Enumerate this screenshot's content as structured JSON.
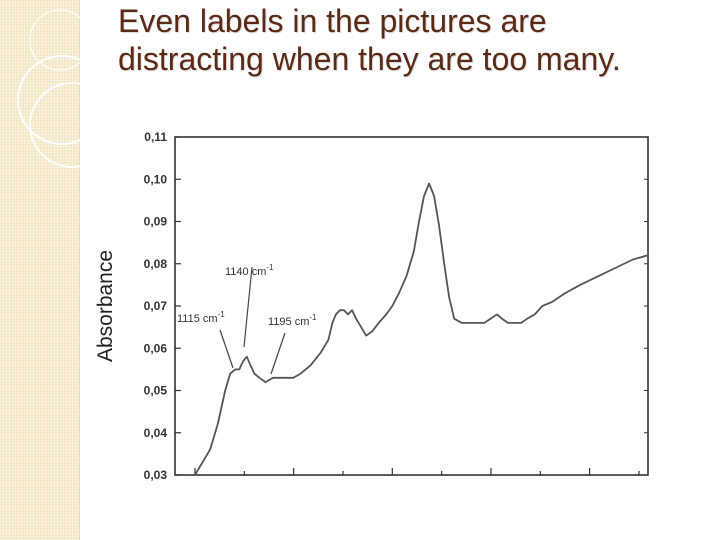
{
  "slide": {
    "title": "Even labels in the pictures are distracting when they are too many."
  },
  "colors": {
    "title": "#5a2a16",
    "side_strip": "#f3e6c4",
    "plot_line": "#555555",
    "axis": "#333333"
  },
  "chart_data": {
    "type": "line",
    "xlabel": "",
    "ylabel": "Absorbance",
    "ylim": [
      0.03,
      0.11
    ],
    "yticks": [
      "0,03",
      "0,04",
      "0,05",
      "0,06",
      "0,07",
      "0,08",
      "0,09",
      "0,10",
      "0,11"
    ],
    "grid": false,
    "series": [
      {
        "points": [
          [
            0.0,
            0.03
          ],
          [
            1.5,
            0.033
          ],
          [
            3.0,
            0.036
          ],
          [
            4.5,
            0.042
          ],
          [
            6.0,
            0.05
          ],
          [
            7.0,
            0.054
          ],
          [
            8.0,
            0.055
          ],
          [
            8.8,
            0.055
          ],
          [
            9.6,
            0.057
          ],
          [
            10.3,
            0.058
          ],
          [
            11.0,
            0.056
          ],
          [
            11.8,
            0.054
          ],
          [
            12.8,
            0.053
          ],
          [
            14.0,
            0.052
          ],
          [
            15.5,
            0.053
          ],
          [
            17.5,
            0.053
          ],
          [
            19.5,
            0.053
          ],
          [
            21.0,
            0.054
          ],
          [
            23.0,
            0.056
          ],
          [
            25.0,
            0.059
          ],
          [
            26.5,
            0.062
          ],
          [
            27.3,
            0.066
          ],
          [
            28.0,
            0.068
          ],
          [
            28.8,
            0.069
          ],
          [
            29.6,
            0.069
          ],
          [
            30.4,
            0.068
          ],
          [
            31.2,
            0.069
          ],
          [
            32.0,
            0.067
          ],
          [
            33.0,
            0.065
          ],
          [
            34.0,
            0.063
          ],
          [
            35.2,
            0.064
          ],
          [
            36.5,
            0.066
          ],
          [
            38.0,
            0.068
          ],
          [
            39.2,
            0.07
          ],
          [
            40.5,
            0.073
          ],
          [
            42.0,
            0.077
          ],
          [
            43.5,
            0.083
          ],
          [
            44.5,
            0.09
          ],
          [
            45.5,
            0.096
          ],
          [
            46.5,
            0.099
          ],
          [
            47.5,
            0.096
          ],
          [
            48.5,
            0.089
          ],
          [
            49.5,
            0.08
          ],
          [
            50.5,
            0.072
          ],
          [
            51.5,
            0.067
          ],
          [
            53.0,
            0.066
          ],
          [
            55.5,
            0.066
          ],
          [
            57.5,
            0.066
          ],
          [
            58.7,
            0.067
          ],
          [
            60.0,
            0.068
          ],
          [
            61.0,
            0.067
          ],
          [
            62.2,
            0.066
          ],
          [
            63.5,
            0.066
          ],
          [
            64.8,
            0.066
          ],
          [
            66.0,
            0.067
          ],
          [
            67.5,
            0.068
          ],
          [
            69.0,
            0.07
          ],
          [
            71.0,
            0.071
          ],
          [
            73.5,
            0.073
          ],
          [
            76.5,
            0.075
          ],
          [
            80.0,
            0.077
          ],
          [
            83.5,
            0.079
          ],
          [
            87.0,
            0.081
          ],
          [
            90.0,
            0.082
          ]
        ]
      }
    ],
    "annotations": [
      {
        "text": "1140 cm",
        "sup": "-1"
      },
      {
        "text": "1115 cm",
        "sup": "-1"
      },
      {
        "text": "1195 cm",
        "sup": "-1"
      }
    ]
  }
}
